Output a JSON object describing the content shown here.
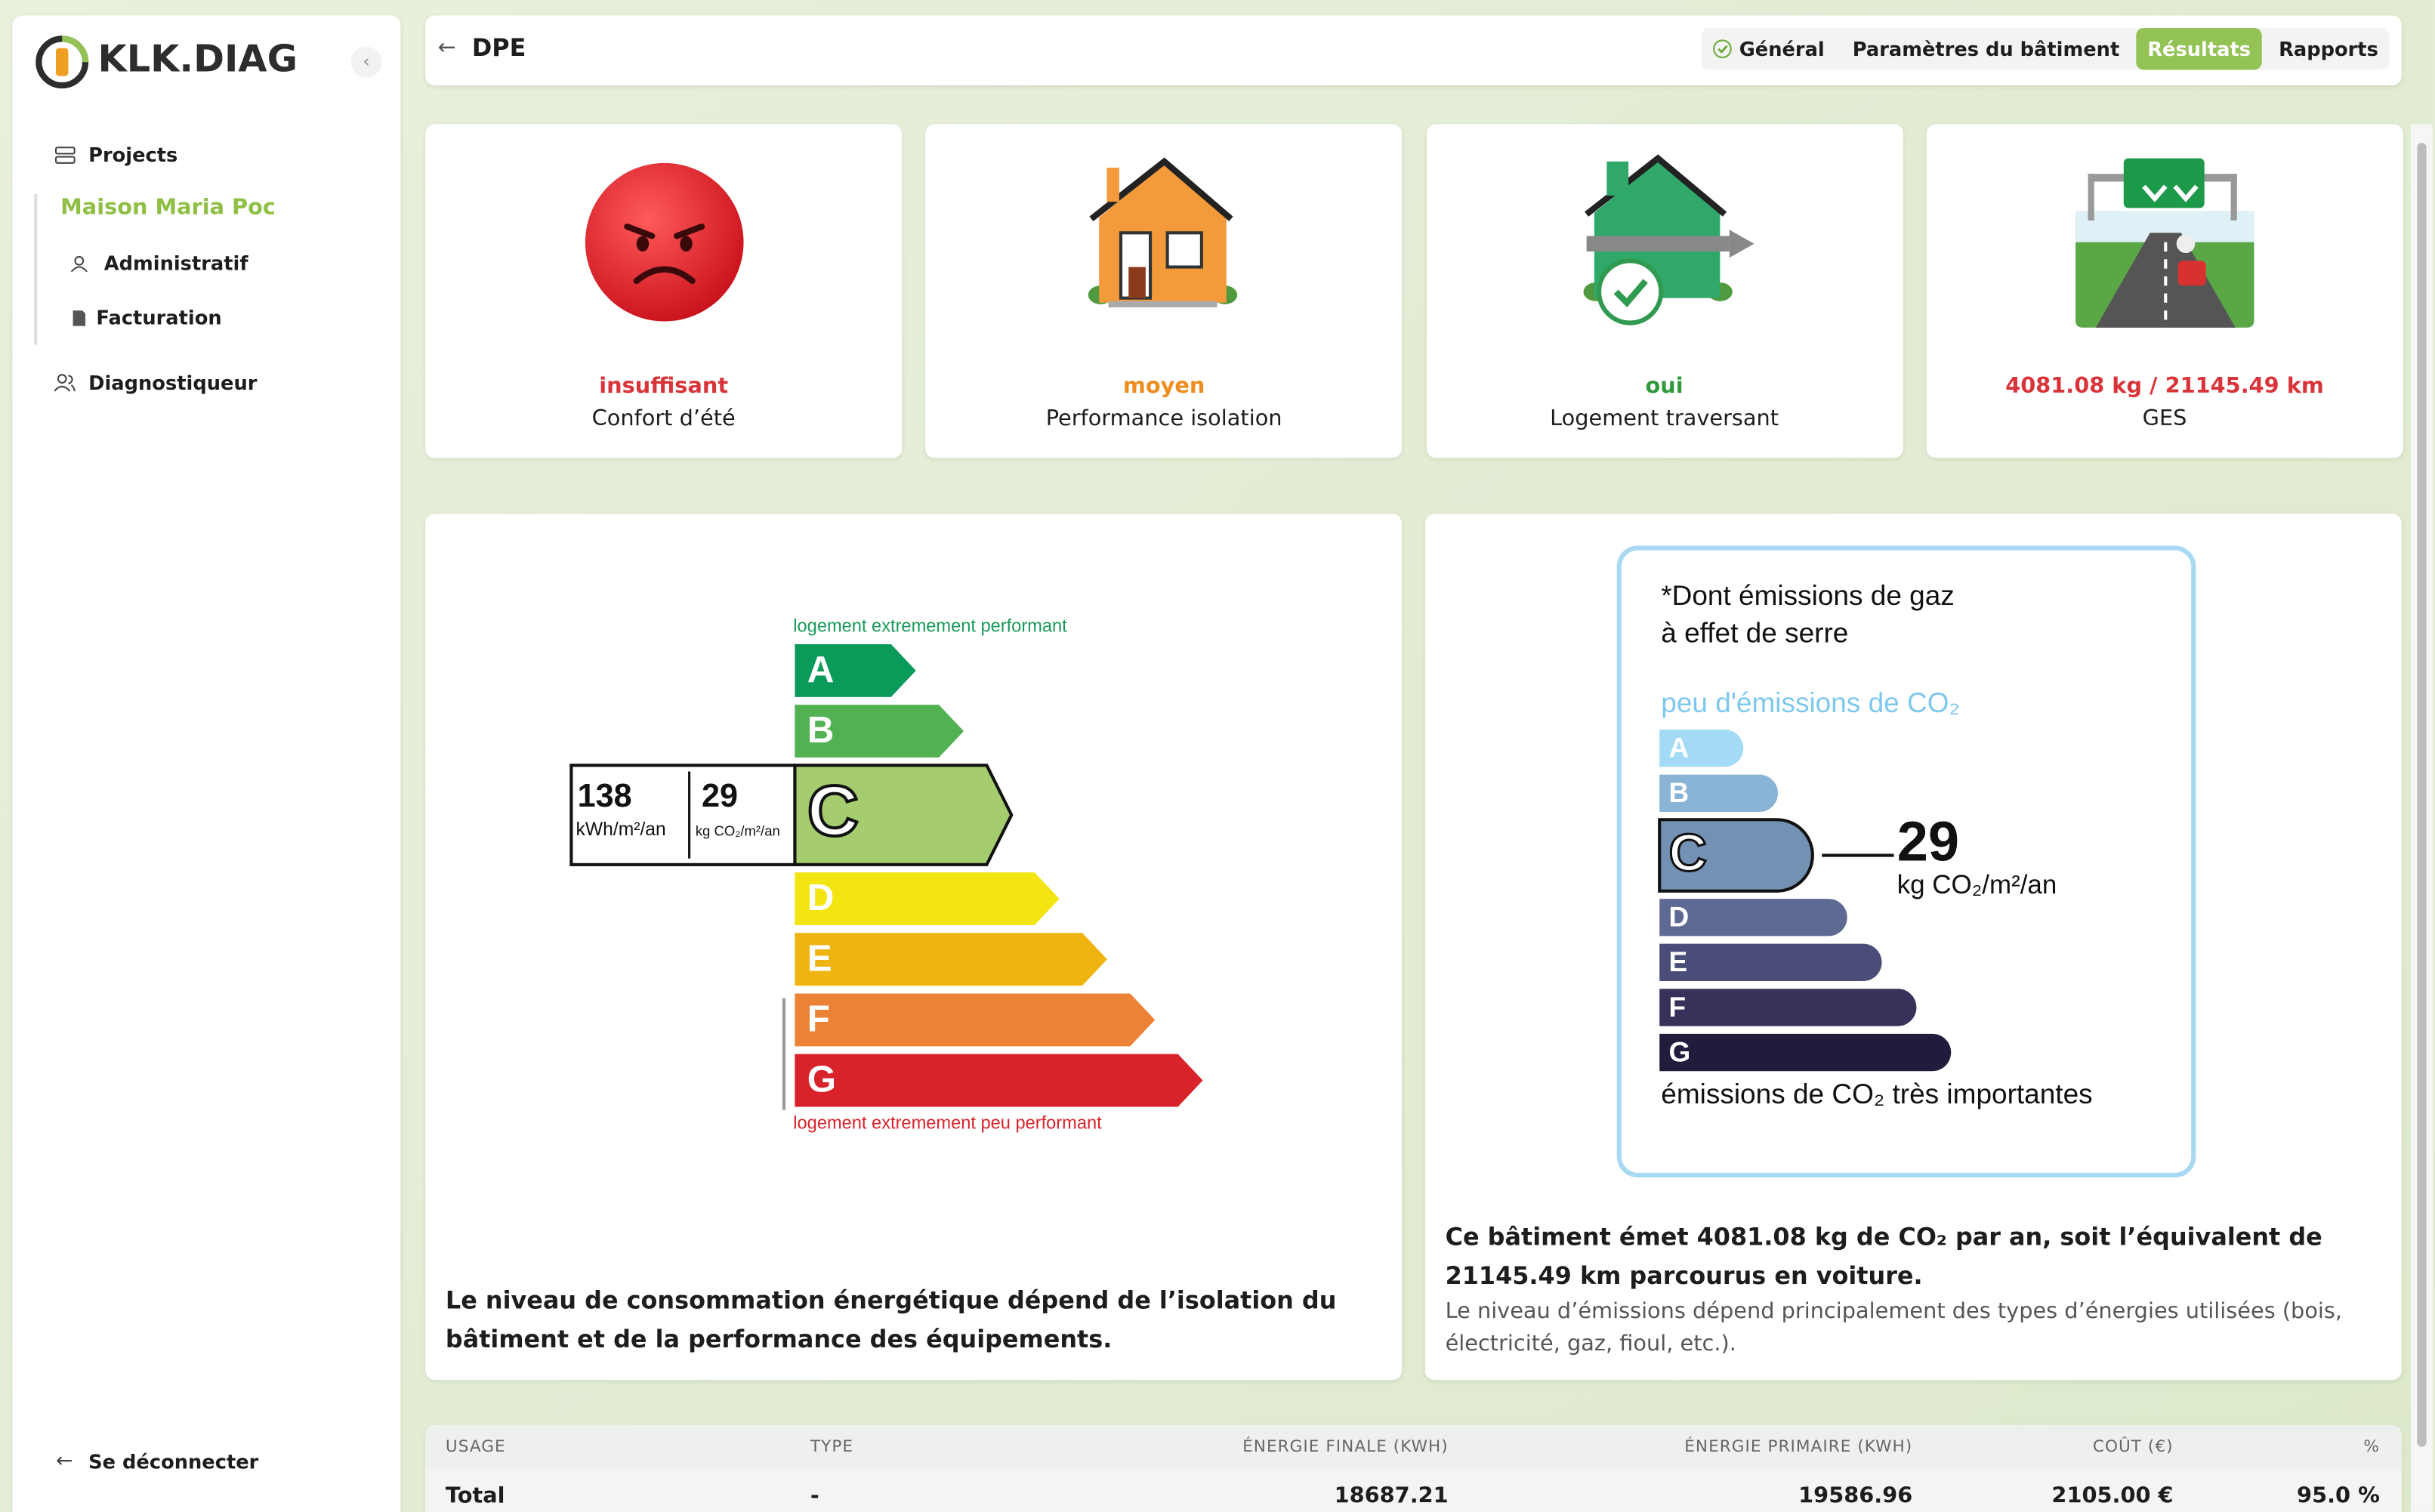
{
  "sidebar": {
    "logo": "KLK.DIAG",
    "projects": "Projects",
    "project": "Maison Maria Poc",
    "subnav": [
      "Administratif",
      "Facturation"
    ],
    "diagnostiqueur": "Diagnostiqueur",
    "logout": "Se déconnecter"
  },
  "header": {
    "title": "DPE",
    "tabs": [
      "Général",
      "Paramètres du bâtiment",
      "Résultats",
      "Rapports"
    ],
    "active_tab": 2
  },
  "cards": [
    {
      "value": "insuffisant",
      "label": "Confort d’été"
    },
    {
      "value": "moyen",
      "label": "Performance isolation"
    },
    {
      "value": "oui",
      "label": "Logement traversant"
    },
    {
      "value": "4081.08 kg / 21145.49 km",
      "label": "GES"
    }
  ],
  "dpe": {
    "top_note": "logement extremement performant",
    "bottom_note": "logement extremement peu performant",
    "classes": [
      "A",
      "B",
      "C",
      "D",
      "E",
      "F",
      "G"
    ],
    "current_class": "C",
    "energy_value": 138,
    "energy_unit": "kWh/m²/an",
    "ges_value": 29,
    "ges_unit": "kg CO₂/m²/an",
    "caption": "Le niveau de consommation énergétique dépend de l’isolation du bâtiment et de la performance des équipements."
  },
  "ges": {
    "title_line1": "*Dont émissions de gaz",
    "title_line2": "à effet de serre",
    "top_note": "peu d'émissions de CO₂",
    "classes": [
      "A",
      "B",
      "C",
      "D",
      "E",
      "F",
      "G"
    ],
    "current_class": "C",
    "value": 29,
    "unit": "kg CO₂/m²/an",
    "bottom_note": "émissions de CO₂ très importantes",
    "caption_bold": "Ce bâtiment émet 4081.08 kg de CO₂ par an, soit l’équivalent de 21145.49 km parcourus en voiture.",
    "caption": "Le niveau d’émissions dépend principalement des types d’énergies utilisées (bois, électricité, gaz, fioul, etc.)."
  },
  "table": {
    "columns": [
      "USAGE",
      "TYPE",
      "ÉNERGIE FINALE (KWH)",
      "ÉNERGIE PRIMAIRE (KWH)",
      "COÛT (€)",
      "%"
    ],
    "rows": [
      [
        "Total",
        "-",
        "18687.21",
        "19586.96",
        "2105.00 €",
        "95.0 %"
      ]
    ]
  }
}
